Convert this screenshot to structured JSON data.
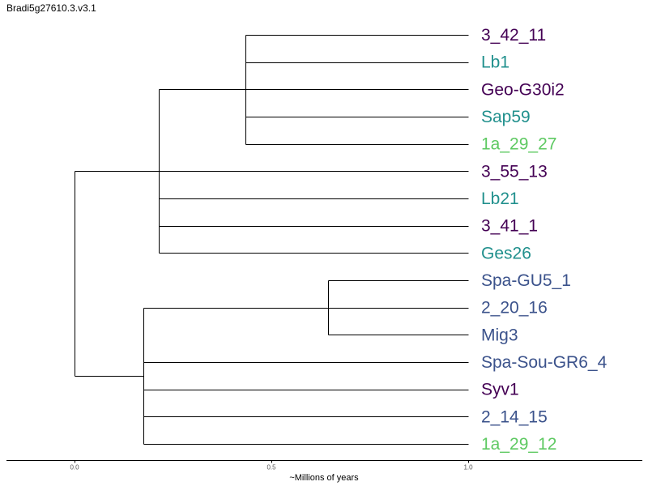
{
  "title": "Bradi5g27610.3.v3.1",
  "axis": {
    "label": "~Millions of years",
    "ticks": [
      {
        "value": 0.0,
        "label": "0.0"
      },
      {
        "value": 0.5,
        "label": "0.5"
      },
      {
        "value": 1.0,
        "label": "1.0"
      }
    ]
  },
  "colors": {
    "dark_purple": "#440154",
    "teal": "#21908d",
    "light_green": "#5ec962",
    "slate_blue": "#3b528b",
    "branch": "#000000"
  },
  "tree": {
    "age": 0.0,
    "children": [
      {
        "age": 0.215,
        "children": [
          {
            "age": 0.435,
            "children": [
              {
                "name": "3_42_11",
                "color": "#440154"
              },
              {
                "name": "Lb1",
                "color": "#21908d"
              },
              {
                "name": "Geo-G30i2",
                "color": "#440154"
              },
              {
                "name": "Sap59",
                "color": "#21908d"
              },
              {
                "name": "1a_29_27",
                "color": "#5ec962"
              }
            ]
          },
          {
            "name": "3_55_13",
            "color": "#440154"
          },
          {
            "name": "Lb21",
            "color": "#21908d"
          },
          {
            "name": "3_41_1",
            "color": "#440154"
          },
          {
            "name": "Ges26",
            "color": "#21908d"
          }
        ]
      },
      {
        "age": 0.175,
        "children": [
          {
            "age": 0.645,
            "children": [
              {
                "name": "Spa-GU5_1",
                "color": "#3b528b"
              },
              {
                "name": "2_20_16",
                "color": "#3b528b"
              },
              {
                "name": "Mig3",
                "color": "#3b528b"
              }
            ]
          },
          {
            "name": "Spa-Sou-GR6_4",
            "color": "#3b528b"
          },
          {
            "name": "Syv1",
            "color": "#440154"
          },
          {
            "name": "2_14_15",
            "color": "#3b528b"
          },
          {
            "name": "1a_29_12",
            "color": "#5ec962"
          }
        ]
      }
    ]
  },
  "tip_age": 1.0
}
